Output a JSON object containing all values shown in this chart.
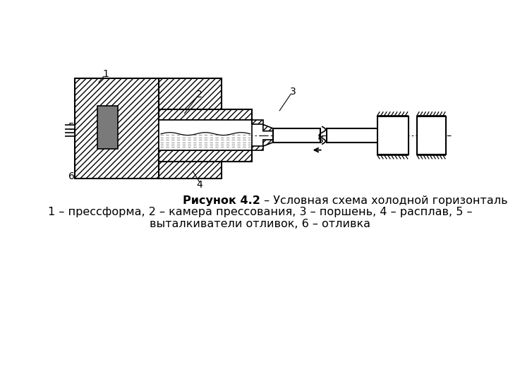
{
  "bg_color": "#ffffff",
  "lc": "#000000",
  "caption_bold": "Рисунок 4.2",
  "caption_rest1": " – Условная схема холодной горизонтальной камеры прессования",
  "caption_line2": "1 – прессформа, 2 – камера прессования, 3 – поршень, 4 – расплав, 5 –",
  "caption_line3": "выталкиватели отливок, 6 – отливка"
}
